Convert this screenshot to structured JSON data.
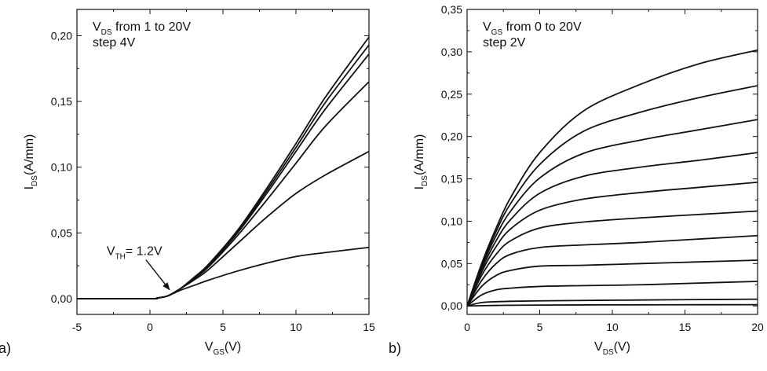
{
  "chart_data": [
    {
      "type": "line",
      "panel_label": "a)",
      "xlabel": {
        "main": "V",
        "sub": "GS",
        "rest": "(V)"
      },
      "ylabel": {
        "main": "I",
        "sub": "DS",
        "rest": "(A/mm)"
      },
      "xlim": [
        -5,
        15
      ],
      "ylim": [
        -0.012,
        0.22
      ],
      "xticks": [
        -5,
        0,
        5,
        10,
        15
      ],
      "xtick_labels": [
        "-5",
        "0",
        "5",
        "10",
        "15"
      ],
      "yticks": [
        0,
        0.05,
        0.1,
        0.15,
        0.2
      ],
      "ytick_labels": [
        "0,00",
        "0,05",
        "0,10",
        "0,15",
        "0,20"
      ],
      "grid": false,
      "legend_text": [
        {
          "main": "V",
          "sub": "DS",
          "rest": " from 1 to 20V"
        },
        {
          "main": "step 4V",
          "sub": "",
          "rest": ""
        }
      ],
      "annotation": {
        "main": "V",
        "sub": "TH",
        "rest": "= 1.2V",
        "point": [
          1.5,
          0.002
        ]
      },
      "series": [
        {
          "x": [
            -5,
            0,
            0.5,
            1.2,
            2,
            3,
            4,
            6,
            8,
            10,
            12,
            15
          ],
          "y": [
            0,
            0,
            0.0005,
            0.002,
            0.006,
            0.01,
            0.014,
            0.021,
            0.027,
            0.032,
            0.035,
            0.039
          ]
        },
        {
          "x": [
            -5,
            0,
            0.5,
            1.2,
            2,
            3,
            4,
            6,
            8,
            10,
            12,
            15
          ],
          "y": [
            0,
            0,
            0.0005,
            0.002,
            0.007,
            0.014,
            0.022,
            0.042,
            0.062,
            0.08,
            0.094,
            0.112
          ]
        },
        {
          "x": [
            -5,
            0,
            0.5,
            1.2,
            2,
            3,
            4,
            6,
            8,
            10,
            12,
            15
          ],
          "y": [
            0,
            0,
            0.0005,
            0.002,
            0.007,
            0.015,
            0.024,
            0.048,
            0.075,
            0.103,
            0.131,
            0.165
          ]
        },
        {
          "x": [
            -5,
            0,
            0.5,
            1.2,
            2,
            3,
            4,
            6,
            8,
            10,
            12,
            15
          ],
          "y": [
            0,
            0,
            0.0005,
            0.002,
            0.007,
            0.015,
            0.025,
            0.05,
            0.08,
            0.112,
            0.144,
            0.186
          ]
        },
        {
          "x": [
            -5,
            0,
            0.5,
            1.2,
            2,
            3,
            4,
            6,
            8,
            10,
            12,
            15
          ],
          "y": [
            0,
            0,
            0.0005,
            0.002,
            0.007,
            0.015,
            0.025,
            0.051,
            0.082,
            0.115,
            0.149,
            0.193
          ]
        },
        {
          "x": [
            -5,
            0,
            0.5,
            1.2,
            2,
            3,
            4,
            6,
            8,
            10,
            12,
            15
          ],
          "y": [
            0,
            0,
            0.0005,
            0.002,
            0.007,
            0.016,
            0.026,
            0.052,
            0.084,
            0.118,
            0.153,
            0.199
          ]
        }
      ]
    },
    {
      "type": "line",
      "panel_label": "b)",
      "xlabel": {
        "main": "V",
        "sub": "DS",
        "rest": "(V)"
      },
      "ylabel": {
        "main": "I",
        "sub": "DS",
        "rest": "(A/mm)"
      },
      "xlim": [
        0,
        20
      ],
      "ylim": [
        -0.01,
        0.35
      ],
      "xticks": [
        0,
        5,
        10,
        15,
        20
      ],
      "xtick_labels": [
        "0",
        "5",
        "10",
        "15",
        "20"
      ],
      "yticks": [
        0,
        0.05,
        0.1,
        0.15,
        0.2,
        0.25,
        0.3,
        0.35
      ],
      "ytick_labels": [
        "0,00",
        "0,05",
        "0,10",
        "0,15",
        "0,20",
        "0,25",
        "0,30",
        "0,35"
      ],
      "grid": false,
      "legend_text": [
        {
          "main": "V",
          "sub": "GS",
          "rest": " from 0 to 20V"
        },
        {
          "main": "step 2V",
          "sub": "",
          "rest": ""
        }
      ],
      "series": [
        {
          "x": [
            0,
            1,
            2,
            3,
            5,
            8,
            12,
            16,
            20
          ],
          "y": [
            0,
            0.0003,
            0.0006,
            0.0008,
            0.001,
            0.0012,
            0.0013,
            0.0014,
            0.0015
          ]
        },
        {
          "x": [
            0,
            1,
            2,
            3,
            5,
            8,
            12,
            16,
            20
          ],
          "y": [
            0,
            0.004,
            0.005,
            0.0055,
            0.006,
            0.0065,
            0.007,
            0.0075,
            0.008
          ]
        },
        {
          "x": [
            0,
            1,
            2,
            3,
            5,
            8,
            12,
            16,
            20
          ],
          "y": [
            0,
            0.013,
            0.019,
            0.021,
            0.023,
            0.024,
            0.025,
            0.027,
            0.029
          ]
        },
        {
          "x": [
            0,
            1,
            2,
            3,
            5,
            8,
            12,
            16,
            20
          ],
          "y": [
            0,
            0.023,
            0.036,
            0.042,
            0.047,
            0.048,
            0.05,
            0.052,
            0.054
          ]
        },
        {
          "x": [
            0,
            1,
            2,
            3,
            5,
            8,
            12,
            16,
            20
          ],
          "y": [
            0,
            0.03,
            0.05,
            0.061,
            0.069,
            0.072,
            0.075,
            0.079,
            0.083
          ]
        },
        {
          "x": [
            0,
            1,
            2,
            3,
            5,
            8,
            12,
            16,
            20
          ],
          "y": [
            0,
            0.036,
            0.061,
            0.077,
            0.092,
            0.099,
            0.104,
            0.108,
            0.112
          ]
        },
        {
          "x": [
            0,
            1,
            2,
            3,
            5,
            8,
            12,
            16,
            20
          ],
          "y": [
            0,
            0.04,
            0.07,
            0.091,
            0.113,
            0.126,
            0.134,
            0.14,
            0.146
          ]
        },
        {
          "x": [
            0,
            1,
            2,
            3,
            5,
            8,
            12,
            16,
            20
          ],
          "y": [
            0,
            0.043,
            0.077,
            0.102,
            0.133,
            0.153,
            0.164,
            0.172,
            0.181
          ]
        },
        {
          "x": [
            0,
            1,
            2,
            3,
            5,
            8,
            12,
            16,
            20
          ],
          "y": [
            0,
            0.046,
            0.083,
            0.112,
            0.151,
            0.18,
            0.196,
            0.208,
            0.22
          ]
        },
        {
          "x": [
            0,
            1,
            2,
            3,
            5,
            8,
            12,
            16,
            20
          ],
          "y": [
            0,
            0.048,
            0.088,
            0.121,
            0.167,
            0.206,
            0.229,
            0.246,
            0.26
          ]
        },
        {
          "x": [
            0,
            1,
            2,
            3,
            5,
            8,
            12,
            16,
            20
          ],
          "y": [
            0,
            0.05,
            0.092,
            0.128,
            0.181,
            0.23,
            0.262,
            0.286,
            0.302
          ]
        }
      ]
    }
  ]
}
